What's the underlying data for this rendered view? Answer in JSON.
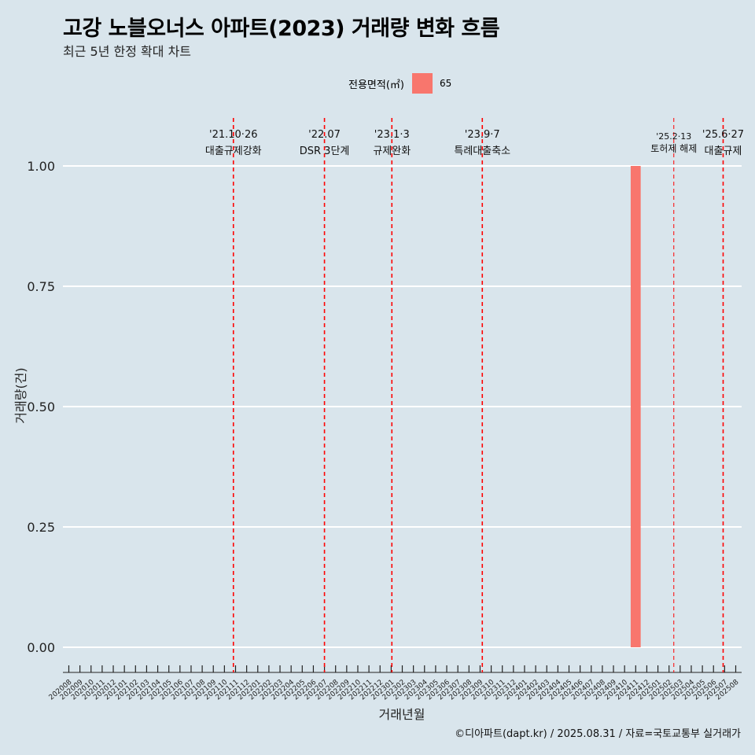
{
  "title": "고강 노블오너스 아파트(2023) 거래량 변화 흐름",
  "subtitle": "최근 5년 한정 확대 차트",
  "caption": "©디아파트(dapt.kr) / 2025.08.31 / 자료=국토교통부 실거래가",
  "colors": {
    "background": "#d9e5ec",
    "bar": "#f8766d",
    "event_line": "#ff0000",
    "grid": "#ffffff"
  },
  "chart_data": {
    "type": "bar",
    "xlabel": "거래년월",
    "ylabel": "거래량(건)",
    "ylim": [
      0,
      1
    ],
    "yticks": [
      "0.00",
      "0.25",
      "0.50",
      "0.75",
      "1.00"
    ],
    "legend": {
      "title": "전용면적(㎡)",
      "position": "top"
    },
    "categories": [
      "202008",
      "202009",
      "202010",
      "202011",
      "202012",
      "202101",
      "202102",
      "202103",
      "202104",
      "202105",
      "202106",
      "202107",
      "202108",
      "202109",
      "202110",
      "202111",
      "202112",
      "202201",
      "202202",
      "202203",
      "202204",
      "202205",
      "202206",
      "202207",
      "202208",
      "202209",
      "202210",
      "202211",
      "202212",
      "202301",
      "202302",
      "202303",
      "202304",
      "202305",
      "202306",
      "202307",
      "202308",
      "202309",
      "202310",
      "202311",
      "202312",
      "202401",
      "202402",
      "202403",
      "202404",
      "202405",
      "202406",
      "202407",
      "202408",
      "202409",
      "202410",
      "202411",
      "202412",
      "202501",
      "202502",
      "202503",
      "202504",
      "202505",
      "202506",
      "202507",
      "202508"
    ],
    "series": [
      {
        "name": "65",
        "color": "#f8766d",
        "bars": [
          {
            "x": "202411",
            "value": 1
          }
        ]
      }
    ],
    "events": [
      {
        "date": "2021-10-26",
        "label1": "'21.10·26",
        "label2": "대출규제강화"
      },
      {
        "date": "2022-07-01",
        "label1": "'22.07",
        "label2": "DSR 3단계"
      },
      {
        "date": "2023-01-03",
        "label1": "'23.1·3",
        "label2": "규제완화"
      },
      {
        "date": "2023-09-07",
        "label1": "'23.9·7",
        "label2": "특례대출축소"
      },
      {
        "date": "2025-02-13",
        "label1": "'25.2·13",
        "label2": "토허제 해제"
      },
      {
        "date": "2025-06-27",
        "label1": "'25.6·27",
        "label2": "대출규제"
      }
    ]
  }
}
